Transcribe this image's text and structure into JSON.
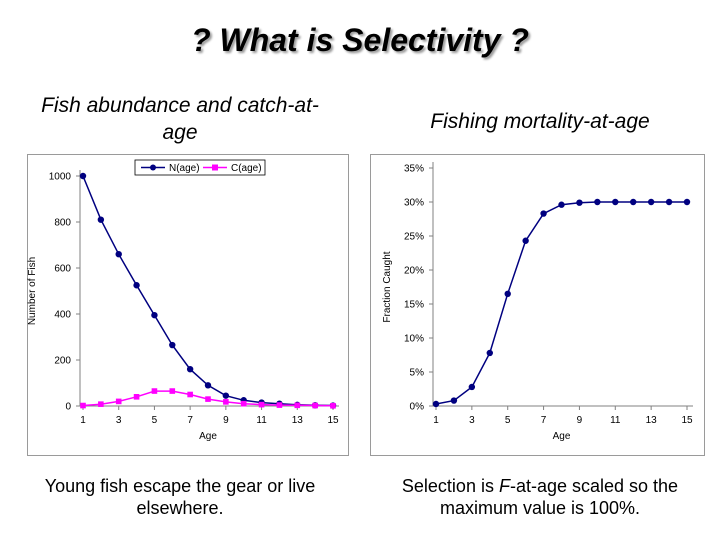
{
  "slide": {
    "title": "? What is Selectivity ?",
    "left_heading": "Fish abundance and catch-at-age",
    "right_heading": "Fishing mortality-at-age",
    "left_caption": "Young fish escape the gear or live elsewhere.",
    "right_caption_parts": [
      "Selection is ",
      "F",
      "-at-age scaled so the maximum value is 100%."
    ]
  },
  "colors": {
    "navy": "#000080",
    "magenta": "#ff00ff"
  },
  "chart_data": [
    {
      "type": "line",
      "xlabel": "Age",
      "ylabel": "Number of Fish",
      "xlim": [
        1,
        15
      ],
      "ylim": [
        0,
        1000
      ],
      "xticks": [
        1,
        3,
        5,
        7,
        9,
        11,
        13,
        15
      ],
      "yticks": [
        0,
        200,
        400,
        600,
        800,
        1000
      ],
      "legend_position": "top",
      "grid": false,
      "x": [
        1,
        2,
        3,
        4,
        5,
        6,
        7,
        8,
        9,
        10,
        11,
        12,
        13,
        14,
        15
      ],
      "series": [
        {
          "name": "N(age)",
          "color": "#000080",
          "marker": "circle",
          "values": [
            1000,
            810,
            660,
            525,
            395,
            265,
            160,
            90,
            45,
            25,
            15,
            10,
            5,
            3,
            2
          ]
        },
        {
          "name": "C(age)",
          "color": "#ff00ff",
          "marker": "square",
          "values": [
            2,
            8,
            20,
            40,
            65,
            65,
            50,
            30,
            18,
            10,
            6,
            4,
            3,
            2,
            1
          ]
        }
      ]
    },
    {
      "type": "line",
      "xlabel": "Age",
      "ylabel": "Fraction Caught",
      "xlim": [
        1,
        15
      ],
      "ylim": [
        0,
        0.35
      ],
      "xticks": [
        1,
        3,
        5,
        7,
        9,
        11,
        13,
        15
      ],
      "yticks": [
        0,
        0.05,
        0.1,
        0.15,
        0.2,
        0.25,
        0.3,
        0.35
      ],
      "ytick_labels": [
        "0%",
        "5%",
        "10%",
        "15%",
        "20%",
        "25%",
        "30%",
        "35%"
      ],
      "grid": false,
      "x": [
        1,
        2,
        3,
        4,
        5,
        6,
        7,
        8,
        9,
        10,
        11,
        12,
        13,
        14,
        15
      ],
      "series": [
        {
          "color": "#000080",
          "marker": "circle",
          "values": [
            0.003,
            0.008,
            0.028,
            0.078,
            0.165,
            0.243,
            0.283,
            0.296,
            0.299,
            0.3,
            0.3,
            0.3,
            0.3,
            0.3,
            0.3
          ]
        }
      ]
    }
  ]
}
